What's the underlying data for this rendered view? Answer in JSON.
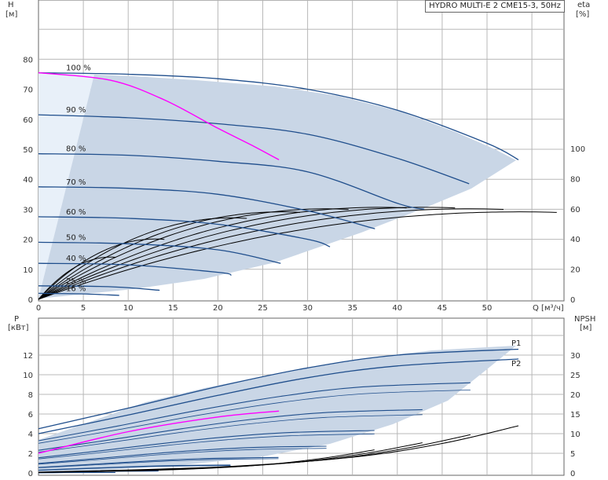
{
  "title": "HYDRO MULTI-E 2 CME15-3, 50Hz",
  "colors": {
    "envelope_fill": "#c9d6e6",
    "envelope_light": "#e4eef9",
    "speed_curve": "#1f4e8c",
    "duty_curve": "#ff00ff",
    "efficiency_curve": "#000000",
    "grid": "#b8b8b8"
  },
  "top_chart": {
    "y_left_title": "H",
    "y_left_unit": "[м]",
    "y_right_title": "eta",
    "y_right_unit": "[%]",
    "x_title": "Q [м³/ч]",
    "x_ticks": [
      "0",
      "5",
      "10",
      "15",
      "20",
      "25",
      "30",
      "35",
      "40",
      "45",
      "50"
    ],
    "y_left_ticks": [
      "0",
      "10",
      "20",
      "30",
      "40",
      "50",
      "60",
      "70",
      "80"
    ],
    "y_right_ticks": [
      "0",
      "20",
      "40",
      "60",
      "80",
      "100"
    ],
    "speed_labels": [
      "100 %",
      "90 %",
      "80 %",
      "70 %",
      "60 %",
      "50 %",
      "40 %",
      "25 %",
      "16 %"
    ]
  },
  "bottom_chart": {
    "y_left_title": "P",
    "y_left_unit": "[кВт]",
    "y_right_title": "NPSH",
    "y_right_unit": "[м]",
    "y_left_ticks": [
      "0",
      "2",
      "4",
      "6",
      "8",
      "10",
      "12"
    ],
    "y_right_ticks": [
      "0",
      "5",
      "10",
      "15",
      "20",
      "25",
      "30"
    ],
    "curve_labels": [
      "P1",
      "P2"
    ]
  },
  "chart_data": [
    {
      "type": "line",
      "name": "head",
      "xlabel": "Q [м³/ч]",
      "ylabel": "H [м]",
      "y2label": "eta [%]",
      "xlim": [
        0,
        56
      ],
      "ylim": [
        0,
        85
      ],
      "y2lim": [
        0,
        120
      ],
      "series": [
        {
          "name": "100 %",
          "x": [
            0,
            10,
            20,
            30,
            40,
            50,
            53.5
          ],
          "y": [
            75.5,
            75,
            73.5,
            70,
            63,
            52,
            46.5
          ]
        },
        {
          "name": "90 %",
          "x": [
            0,
            10,
            20,
            30,
            40,
            48
          ],
          "y": [
            61.5,
            60.5,
            58.5,
            55,
            47,
            38.5
          ]
        },
        {
          "name": "80 %",
          "x": [
            0,
            10,
            20,
            30,
            40,
            43
          ],
          "y": [
            48.5,
            48,
            46,
            42.5,
            32,
            30
          ]
        },
        {
          "name": "70 %",
          "x": [
            0,
            10,
            20,
            30,
            37.5
          ],
          "y": [
            37.5,
            37,
            35,
            29.5,
            23.5
          ]
        },
        {
          "name": "60 %",
          "x": [
            0,
            10,
            20,
            30,
            32.5
          ],
          "y": [
            27.5,
            27,
            25,
            20,
            17.5
          ]
        },
        {
          "name": "50 %",
          "x": [
            0,
            10,
            20,
            27
          ],
          "y": [
            19,
            18.5,
            16.5,
            12
          ]
        },
        {
          "name": "40 %",
          "x": [
            0,
            10,
            20,
            21.5
          ],
          "y": [
            12,
            11.5,
            9,
            8
          ]
        },
        {
          "name": "25 %",
          "x": [
            0,
            8,
            13.5
          ],
          "y": [
            4.5,
            4.2,
            3
          ]
        },
        {
          "name": "16 %",
          "x": [
            0,
            5,
            9
          ],
          "y": [
            2,
            1.8,
            1.3
          ]
        },
        {
          "name": "duty",
          "x": [
            0,
            8,
            14,
            20,
            24,
            26.8
          ],
          "y": [
            75.5,
            73,
            66.5,
            57,
            51,
            46.5
          ]
        }
      ],
      "efficiency_max": [
        {
          "speed": "100 %",
          "x": 53.5,
          "eta": 58
        },
        {
          "speed": "90 %",
          "x": 48,
          "eta": 60
        },
        {
          "speed": "80 %",
          "x": 43,
          "eta": 61
        },
        {
          "speed": "70 %",
          "x": 38,
          "eta": 61
        },
        {
          "speed": "60 %",
          "x": 32,
          "eta": 60
        },
        {
          "speed": "50 %",
          "x": 27,
          "eta": 58
        },
        {
          "speed": "40 %",
          "x": 21.5,
          "eta": 54
        },
        {
          "speed": "25 %",
          "x": 13,
          "eta": 40
        },
        {
          "speed": "16 %",
          "x": 8,
          "eta": 28
        }
      ]
    },
    {
      "type": "line",
      "name": "power_npsh",
      "xlabel": "Q [м³/ч]",
      "ylabel": "P [кВт]",
      "y2label": "NPSH [м]",
      "xlim": [
        0,
        56
      ],
      "ylim": [
        0,
        14
      ],
      "y2lim": [
        0,
        35
      ],
      "series": [
        {
          "name": "P1",
          "x": [
            0,
            10,
            20,
            30,
            40,
            53.5
          ],
          "y": [
            4.5,
            6.6,
            8.8,
            10.7,
            12,
            12.6
          ]
        },
        {
          "name": "P2",
          "x": [
            0,
            10,
            20,
            30,
            40,
            53.5
          ],
          "y": [
            4,
            5.9,
            7.9,
            9.7,
            10.9,
            11.6
          ]
        },
        {
          "name": "duty",
          "x": [
            0,
            10,
            20,
            26.8
          ],
          "y": [
            2,
            4.2,
            5.7,
            6.3
          ]
        },
        {
          "name": "NPSH",
          "x": [
            0,
            20,
            35,
            45,
            53.5
          ],
          "y": [
            0.2,
            1.5,
            4,
            7.5,
            12
          ]
        }
      ]
    }
  ]
}
